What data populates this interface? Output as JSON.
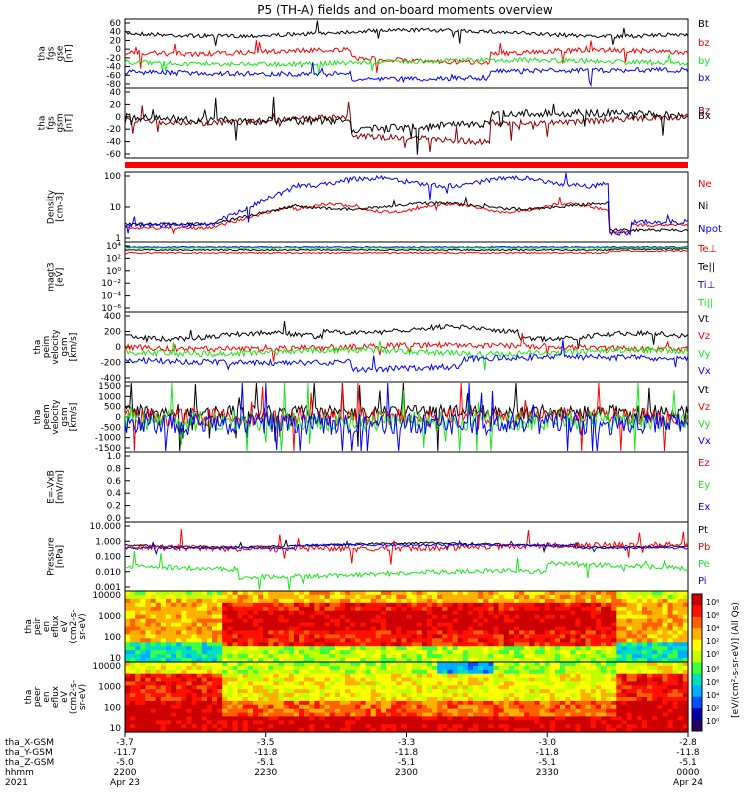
{
  "title": "P5 (TH-A) fields and on-board moments overview",
  "colors": {
    "black": "#000000",
    "red": "#ff0000",
    "green": "#19e619",
    "blue": "#0000ff",
    "maroon": "#8b0000"
  },
  "chart_data": [
    {
      "type": "line",
      "panel": "fgs",
      "ylabel": [
        "tha",
        "fgs",
        "gse",
        "[nT]"
      ],
      "ylim": [
        -80,
        60
      ],
      "yticks": [
        "60",
        "40",
        "20",
        "0",
        "-20",
        "-40",
        "-60",
        "-80"
      ],
      "series": [
        {
          "name": "Bt",
          "color": "black",
          "level": 42,
          "amp": 8
        },
        {
          "name": "bz",
          "color": "red",
          "level": 10,
          "amp": 10
        },
        {
          "name": "by",
          "color": "green",
          "level": -12,
          "amp": 8
        },
        {
          "name": "bx",
          "color": "blue",
          "level": -25,
          "amp": 8
        }
      ]
    },
    {
      "type": "line",
      "panel": "fgs_gsm",
      "ylabel": [
        "tha",
        "fgs",
        "gsm",
        "[nT]"
      ],
      "ylim": [
        -80,
        40
      ],
      "yticks": [
        "40",
        "20",
        "0",
        "-20",
        "-40",
        "-60"
      ],
      "series": [
        {
          "name": "Bz",
          "color": "maroon",
          "level": -5,
          "amp": 12
        },
        {
          "name": "Bx",
          "color": "black",
          "level": 0,
          "amp": 14
        }
      ]
    },
    {
      "type": "line",
      "panel": "density",
      "ylabel": [
        "Density",
        "[cm-3]"
      ],
      "ylim": [
        0.1,
        200
      ],
      "log": true,
      "yticks": [
        "100",
        "10",
        "1"
      ],
      "series": [
        {
          "name": "Ne",
          "color": "red",
          "level": 4
        },
        {
          "name": "Ni",
          "color": "black",
          "level": 5
        },
        {
          "name": "Npot",
          "color": "blue",
          "level": 30
        }
      ]
    },
    {
      "type": "line",
      "panel": "temperature",
      "ylabel": [
        "magt3",
        "[eV]"
      ],
      "ylim": [
        1e-06,
        10000.0
      ],
      "log": true,
      "yticks": [
        "10⁴",
        "10²",
        "10⁰",
        "10⁻²",
        "10⁻⁴",
        "10⁻⁶"
      ],
      "series": [
        {
          "name": "Te⊥",
          "color": "red"
        },
        {
          "name": "Te||",
          "color": "black"
        },
        {
          "name": "Ti⊥",
          "color": "blue"
        },
        {
          "name": "Ti||",
          "color": "green"
        }
      ]
    },
    {
      "type": "line",
      "panel": "peim_velocity",
      "ylabel": [
        "tha",
        "peim",
        "velocity",
        "gsm",
        "[km/s]"
      ],
      "ylim": [
        -400,
        400
      ],
      "yticks": [
        "400",
        "200",
        "0",
        "-200",
        "-400"
      ],
      "series": [
        {
          "name": "Vt",
          "color": "black"
        },
        {
          "name": "Vz",
          "color": "red"
        },
        {
          "name": "Vy",
          "color": "green"
        },
        {
          "name": "Vx",
          "color": "blue"
        }
      ]
    },
    {
      "type": "line",
      "panel": "peem_velocity",
      "ylabel": [
        "tha",
        "peem",
        "velocity",
        "gsm",
        "[km/s]"
      ],
      "ylim": [
        -1500,
        1500
      ],
      "yticks": [
        "1500",
        "1000",
        "500",
        "0",
        "-500",
        "-1000",
        "-1500"
      ],
      "series": [
        {
          "name": "Vt",
          "color": "black"
        },
        {
          "name": "Vz",
          "color": "red"
        },
        {
          "name": "Vy",
          "color": "green"
        },
        {
          "name": "Vx",
          "color": "blue"
        }
      ]
    },
    {
      "type": "line",
      "panel": "efield",
      "ylabel": [
        "E=-VxB",
        "[mV/m]"
      ],
      "ylim": [
        0,
        1
      ],
      "yticks": [
        "1.0",
        "0.8",
        "0.6",
        "0.4",
        "0.2",
        "0.0"
      ],
      "series": [
        {
          "name": "Ez",
          "color": "red"
        },
        {
          "name": "Ey",
          "color": "green"
        },
        {
          "name": "Ex",
          "color": "blue"
        }
      ]
    },
    {
      "type": "line",
      "panel": "pressure",
      "ylabel": [
        "Pressure",
        "[nPa]"
      ],
      "ylim": [
        0.001,
        10
      ],
      "log": true,
      "yticks": [
        "10.000",
        "1.000",
        "0.100",
        "0.010",
        "0.001"
      ],
      "series": [
        {
          "name": "Pt",
          "color": "black"
        },
        {
          "name": "Pb",
          "color": "red"
        },
        {
          "name": "Pe",
          "color": "green"
        },
        {
          "name": "Pi",
          "color": "blue"
        }
      ]
    },
    {
      "type": "heatmap",
      "panel": "peir_eflux",
      "ylabel": [
        "tha",
        "peir",
        "en",
        "eflux",
        "eV",
        "(cm2-s-",
        "sr-eV)"
      ],
      "ylim": [
        10,
        20000
      ],
      "yticks": [
        "10000",
        "1000",
        "100",
        "10"
      ]
    },
    {
      "type": "heatmap",
      "panel": "peer_eflux",
      "ylabel": [
        "tha",
        "peer",
        "en",
        "eflux",
        "eV",
        "(cm2-s-",
        "sr-eV)"
      ],
      "ylim": [
        10,
        20000
      ],
      "yticks": [
        "10000",
        "1000",
        "100",
        "10"
      ]
    }
  ],
  "colorbar": {
    "label": "[eV/(cm²-s-sr-eV)] (All Qs)",
    "ticks_top": [
      "10⁸",
      "10⁶",
      "10⁴",
      "10²",
      "10⁰"
    ],
    "ticks_bottom": [
      "10⁸",
      "10⁶",
      "10⁴",
      "10²",
      "10⁰"
    ]
  },
  "xaxis": {
    "row_labels": [
      "tha_X-GSM",
      "tha_Y-GSM",
      "tha_Z-GSM",
      "hhmm",
      "2021"
    ],
    "ticks": [
      {
        "x_gsm": "-3.7",
        "y_gsm": "-11.7",
        "z_gsm": "-5.0",
        "hhmm": "2200",
        "date": "Apr 23"
      },
      {
        "x_gsm": "-3.5",
        "y_gsm": "-11.8",
        "z_gsm": "-5.1",
        "hhmm": "2230",
        "date": ""
      },
      {
        "x_gsm": "-3.3",
        "y_gsm": "-11.8",
        "z_gsm": "-5.1",
        "hhmm": "2300",
        "date": ""
      },
      {
        "x_gsm": "-3.0",
        "y_gsm": "-11.8",
        "z_gsm": "-5.1",
        "hhmm": "2330",
        "date": ""
      },
      {
        "x_gsm": "-2.8",
        "y_gsm": "-11.8",
        "z_gsm": "-5.1",
        "hhmm": "0000",
        "date": "Apr 24"
      }
    ]
  }
}
